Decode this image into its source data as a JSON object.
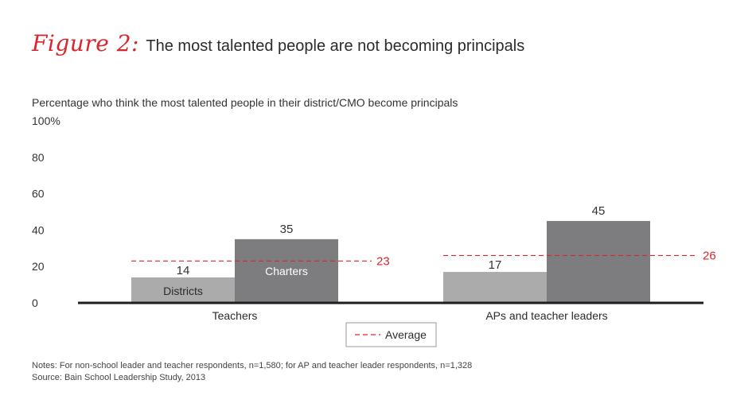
{
  "figure": {
    "label": "Figure 2:",
    "title": "The most talented people are not becoming principals"
  },
  "chart_data": {
    "type": "bar",
    "title": "Percentage who think the most talented people in their district/CMO become principals",
    "categories": [
      "Teachers",
      "APs and teacher leaders"
    ],
    "series": [
      {
        "name": "Districts",
        "values": [
          14,
          17
        ],
        "color": "#ababab"
      },
      {
        "name": "Charters",
        "values": [
          35,
          45
        ],
        "color": "#7d7d80"
      }
    ],
    "average": {
      "name": "Average",
      "values": [
        23,
        26
      ],
      "color": "#d9262e"
    },
    "ylim": [
      0,
      100
    ],
    "yticks": [
      "0",
      "20",
      "40",
      "60",
      "80",
      "100%"
    ],
    "ytick_values": [
      0,
      20,
      40,
      60,
      80,
      100
    ],
    "grid": false,
    "legend": "bottom-center"
  },
  "notes": {
    "line1": "Notes: For non-school leader and teacher respondents, n=1,580; for AP and teacher leader respondents, n=1,328",
    "line2": "Source: Bain School Leadership Study, 2013"
  }
}
